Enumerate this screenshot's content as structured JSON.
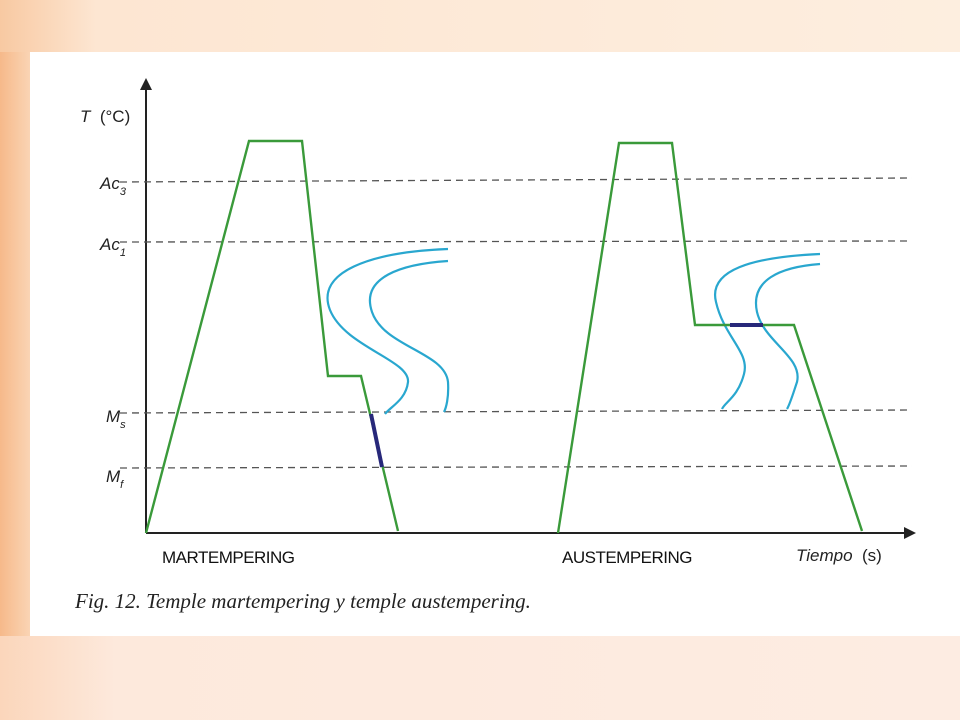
{
  "axes": {
    "y_label": "T",
    "y_unit": "(°C)",
    "x_label": "Tiempo",
    "x_unit": "(s)"
  },
  "levels": [
    {
      "main": "Ac",
      "sub": "3"
    },
    {
      "main": "Ac",
      "sub": "1"
    },
    {
      "main": "M",
      "sub": "s"
    },
    {
      "main": "M",
      "sub": "f"
    }
  ],
  "process_labels": {
    "left": "MARTEMPERING",
    "right": "AUSTEMPERING"
  },
  "caption": "Fig. 12. Temple martempering y temple austempering.",
  "colors": {
    "cooling_curve": "#3a9a3a",
    "ttt_curve": "#29a7cf",
    "transformation": "#27287a"
  }
}
